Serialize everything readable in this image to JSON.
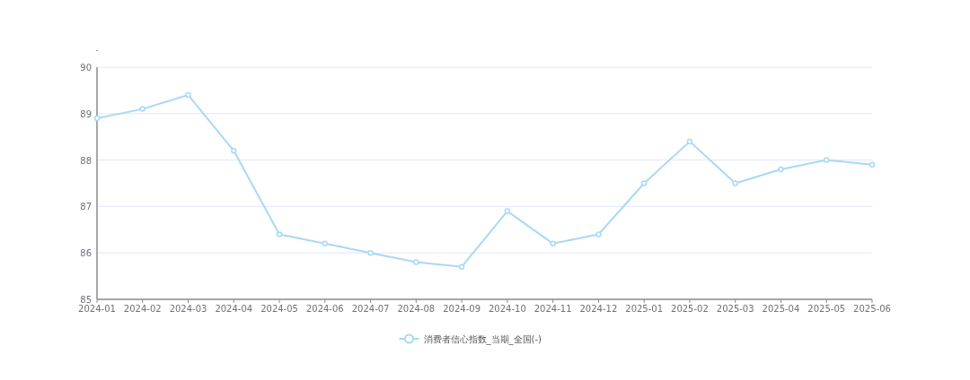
{
  "chart_data": {
    "type": "line",
    "ylabel": "-",
    "categories": [
      "2024-01",
      "2024-02",
      "2024-03",
      "2024-04",
      "2024-05",
      "2024-06",
      "2024-07",
      "2024-08",
      "2024-09",
      "2024-10",
      "2024-11",
      "2024-12",
      "2025-01",
      "2025-02",
      "2025-03",
      "2025-04",
      "2025-05",
      "2025-06"
    ],
    "series": [
      {
        "name": "消费者信心指数_当期_全国(-)",
        "color": "#a9d8f7",
        "values": [
          88.9,
          89.1,
          89.4,
          88.2,
          86.4,
          86.2,
          86.0,
          85.8,
          85.7,
          86.9,
          86.2,
          86.4,
          87.5,
          88.4,
          87.5,
          87.8,
          88.0,
          87.9
        ]
      }
    ],
    "ylim": [
      85,
      90
    ],
    "yticks": [
      85,
      86,
      87,
      88,
      89,
      90
    ],
    "grid": "y",
    "legend": "bottom",
    "marker": "circle",
    "line_style": "solid"
  }
}
